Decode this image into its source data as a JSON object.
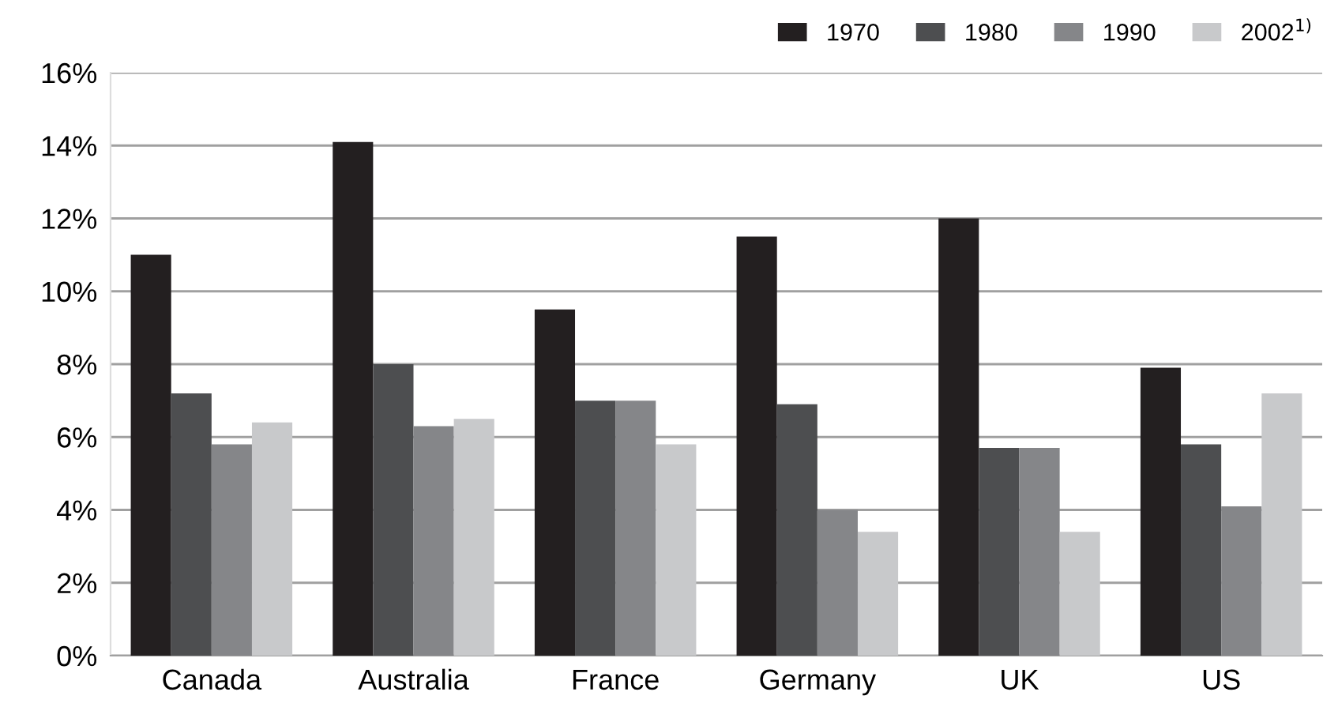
{
  "chart_data": {
    "type": "bar",
    "categories": [
      "Canada",
      "Australia",
      "France",
      "Germany",
      "UK",
      "US"
    ],
    "series": [
      {
        "name": "1970",
        "color": "#231f20",
        "values": [
          11.0,
          14.1,
          9.5,
          11.5,
          12.0,
          7.9
        ]
      },
      {
        "name": "1980",
        "color": "#4d4e50",
        "values": [
          7.2,
          8.0,
          7.0,
          6.9,
          5.7,
          5.8
        ]
      },
      {
        "name": "1990",
        "color": "#858689",
        "values": [
          5.8,
          6.3,
          7.0,
          4.0,
          5.7,
          4.1
        ]
      },
      {
        "name": "2002$^{1)}$",
        "color": "#c8c9cb",
        "values": [
          6.4,
          6.5,
          5.8,
          3.4,
          3.4,
          7.2
        ]
      }
    ],
    "ylim": [
      0,
      16
    ],
    "yticks": [
      {
        "value": 0,
        "label": "0%"
      },
      {
        "value": 2,
        "label": "2%"
      },
      {
        "value": 4,
        "label": "4%"
      },
      {
        "value": 6,
        "label": "6%"
      },
      {
        "value": 8,
        "label": "8%"
      },
      {
        "value": 10,
        "label": "10%"
      },
      {
        "value": 12,
        "label": "12%"
      },
      {
        "value": 14,
        "label": "14%"
      },
      {
        "value": 16,
        "label": "16%"
      }
    ],
    "grid": "y",
    "legend": "top right"
  }
}
